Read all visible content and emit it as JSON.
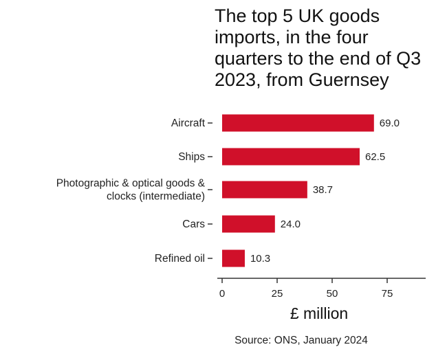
{
  "chart_data": {
    "type": "bar",
    "orientation": "horizontal",
    "title": "The top 5 UK goods imports, in the four quarters to the end of Q3 2023, from Guernsey",
    "categories": [
      [
        "Aircraft"
      ],
      [
        "Ships"
      ],
      [
        "Photographic & optical goods &",
        "clocks (intermediate)"
      ],
      [
        "Cars"
      ],
      [
        "Refined oil"
      ]
    ],
    "values": [
      69.0,
      62.5,
      38.7,
      24.0,
      10.3
    ],
    "value_labels": [
      "69.0",
      "62.5",
      "38.7",
      "24.0",
      "10.3"
    ],
    "xlabel": "£ million",
    "xlim": [
      0,
      93
    ],
    "xticks": [
      0,
      25,
      50,
      75
    ],
    "xtick_labels": [
      "0",
      "25",
      "50",
      "75"
    ],
    "grid": false,
    "bar_color": "#d0102a",
    "source": "Source: ONS, January 2024"
  }
}
